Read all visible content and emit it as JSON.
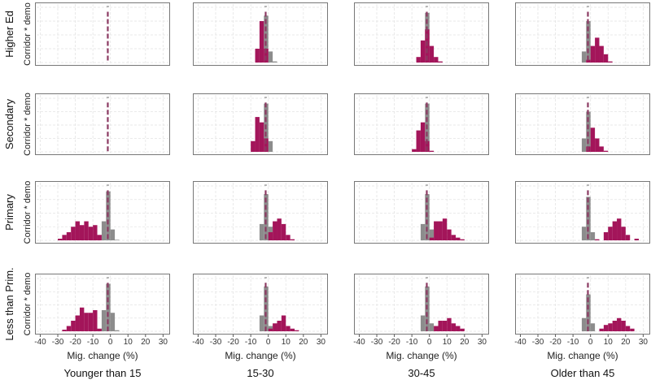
{
  "chart_data": {
    "type": "bar",
    "subtype": "histogram-facet-grid",
    "xlabel": "Mig. change (%)",
    "ylabel": "Corridor * demo",
    "xlim": [
      -43,
      34
    ],
    "ylim": [
      0,
      1
    ],
    "xticks": [
      -40,
      -30,
      -20,
      -10,
      0,
      10,
      20,
      30
    ],
    "grid": true,
    "bin_width": 2.5,
    "reference_line_x": -1.5,
    "colors": {
      "baseline": "#8c8c8c",
      "demo": "#a3155a",
      "reference_line": "#8b3a62"
    },
    "columns": [
      "Younger than 15",
      "15-30",
      "30-45",
      "Older than 45"
    ],
    "rows": [
      "Higher Ed",
      "Secondary",
      "Primary",
      "Less than Prim."
    ],
    "panels": [
      [
        {
          "gray": [],
          "crimson": []
        },
        {
          "gray": [
            [
              -2.5,
              0.85
            ],
            [
              0,
              0.2
            ],
            [
              2.5,
              0.02
            ]
          ],
          "crimson": [
            [
              -7.5,
              0.25
            ],
            [
              -5,
              0.75
            ],
            [
              -2.5,
              0.25
            ]
          ]
        },
        {
          "gray": [
            [
              -2.5,
              0.9
            ]
          ],
          "crimson": [
            [
              -7.5,
              0.1
            ],
            [
              -5,
              0.4
            ],
            [
              -2.5,
              0.6
            ],
            [
              0,
              0.3
            ],
            [
              2.5,
              0.1
            ],
            [
              5,
              0.02
            ]
          ]
        },
        {
          "gray": [
            [
              -5,
              0.2
            ],
            [
              -2.5,
              0.75
            ]
          ],
          "crimson": [
            [
              -2.5,
              0.05
            ],
            [
              0,
              0.3
            ],
            [
              2.5,
              0.45
            ],
            [
              5,
              0.3
            ],
            [
              7.5,
              0.15
            ],
            [
              10,
              0.02
            ]
          ]
        }
      ],
      [
        {
          "gray": [],
          "crimson": []
        },
        {
          "gray": [
            [
              -2.5,
              0.9
            ],
            [
              0,
              0.2
            ]
          ],
          "crimson": [
            [
              -10,
              0.2
            ],
            [
              -7.5,
              0.65
            ],
            [
              -5,
              0.55
            ],
            [
              -2.5,
              0.25
            ]
          ]
        },
        {
          "gray": [
            [
              -2.5,
              0.9
            ]
          ],
          "crimson": [
            [
              -10,
              0.05
            ],
            [
              -7.5,
              0.4
            ],
            [
              -5,
              0.55
            ],
            [
              -2.5,
              0.2
            ],
            [
              0,
              0.02
            ]
          ]
        },
        {
          "gray": [
            [
              -5,
              0.25
            ],
            [
              -2.5,
              0.75
            ]
          ],
          "crimson": [
            [
              -2.5,
              0.1
            ],
            [
              0,
              0.45
            ],
            [
              2.5,
              0.25
            ],
            [
              5,
              0.1
            ],
            [
              7.5,
              0.02
            ]
          ]
        }
      ],
      [
        {
          "gray": [
            [
              -5,
              0.35
            ],
            [
              -2.5,
              0.9
            ],
            [
              0,
              0.2
            ],
            [
              2.5,
              0.01
            ]
          ],
          "crimson": [
            [
              -30,
              0.03
            ],
            [
              -27.5,
              0.1
            ],
            [
              -25,
              0.15
            ],
            [
              -22.5,
              0.25
            ],
            [
              -20,
              0.35
            ],
            [
              -17.5,
              0.28
            ],
            [
              -15,
              0.35
            ],
            [
              -12.5,
              0.25
            ],
            [
              -10,
              0.28
            ],
            [
              -7.5,
              0.1
            ]
          ]
        },
        {
          "gray": [
            [
              -5,
              0.3
            ],
            [
              -2.5,
              0.85
            ],
            [
              0,
              0.25
            ]
          ],
          "crimson": [
            [
              0,
              0.15
            ],
            [
              2.5,
              0.35
            ],
            [
              5,
              0.4
            ],
            [
              7.5,
              0.3
            ],
            [
              10,
              0.1
            ],
            [
              12.5,
              0.02
            ]
          ]
        },
        {
          "gray": [
            [
              -5,
              0.3
            ],
            [
              -2.5,
              0.85
            ],
            [
              0,
              0.2
            ]
          ],
          "crimson": [
            [
              0,
              0.05
            ],
            [
              2.5,
              0.35
            ],
            [
              5,
              0.35
            ],
            [
              7.5,
              0.4
            ],
            [
              10,
              0.2
            ],
            [
              12.5,
              0.1
            ],
            [
              15,
              0.05
            ],
            [
              17.5,
              0.02
            ]
          ]
        },
        {
          "gray": [
            [
              -5,
              0.25
            ],
            [
              -2.5,
              0.8
            ],
            [
              0,
              0.15
            ]
          ],
          "crimson": [
            [
              2.5,
              0.02
            ],
            [
              7.5,
              0.15
            ],
            [
              10,
              0.25
            ],
            [
              12.5,
              0.35
            ],
            [
              15,
              0.4
            ],
            [
              17.5,
              0.25
            ],
            [
              20,
              0.1
            ],
            [
              25,
              0.03
            ]
          ]
        }
      ],
      [
        {
          "gray": [
            [
              -5,
              0.4
            ],
            [
              -2.5,
              0.9
            ],
            [
              0,
              0.35
            ],
            [
              2.5,
              0.02
            ]
          ],
          "crimson": [
            [
              -27.5,
              0.03
            ],
            [
              -25,
              0.1
            ],
            [
              -22.5,
              0.2
            ],
            [
              -20,
              0.3
            ],
            [
              -17.5,
              0.45
            ],
            [
              -15,
              0.35
            ],
            [
              -12.5,
              0.35
            ],
            [
              -10,
              0.4
            ],
            [
              -7.5,
              0.05
            ]
          ]
        },
        {
          "gray": [
            [
              -5,
              0.3
            ],
            [
              -2.5,
              0.85
            ],
            [
              0,
              0.1
            ]
          ],
          "crimson": [
            [
              0,
              0.05
            ],
            [
              2.5,
              0.15
            ],
            [
              5,
              0.2
            ],
            [
              7.5,
              0.3
            ],
            [
              10,
              0.1
            ],
            [
              12.5,
              0.05
            ],
            [
              15,
              0.02
            ]
          ]
        },
        {
          "gray": [
            [
              -5,
              0.3
            ],
            [
              -2.5,
              0.85
            ],
            [
              0,
              0.15
            ]
          ],
          "crimson": [
            [
              2.5,
              0.1
            ],
            [
              5,
              0.2
            ],
            [
              7.5,
              0.2
            ],
            [
              10,
              0.25
            ],
            [
              12.5,
              0.15
            ],
            [
              15,
              0.1
            ],
            [
              17.5,
              0.05
            ]
          ]
        },
        {
          "gray": [
            [
              -5,
              0.25
            ],
            [
              -2.5,
              0.7
            ],
            [
              0,
              0.15
            ]
          ],
          "crimson": [
            [
              5,
              0.05
            ],
            [
              7.5,
              0.12
            ],
            [
              10,
              0.15
            ],
            [
              12.5,
              0.2
            ],
            [
              15,
              0.25
            ],
            [
              17.5,
              0.2
            ],
            [
              20,
              0.1
            ],
            [
              22.5,
              0.05
            ]
          ]
        }
      ]
    ]
  }
}
